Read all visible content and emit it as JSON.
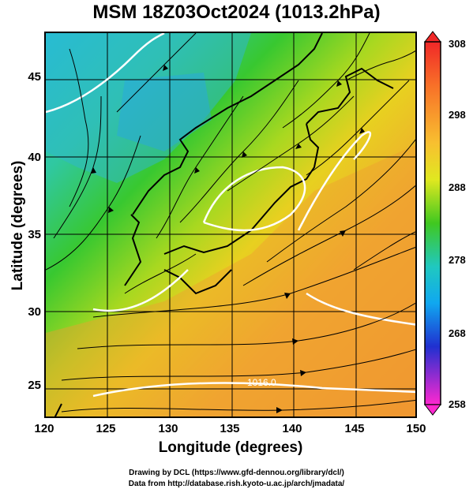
{
  "title": "MSM 18Z03Oct2024 (1013.2hPa)",
  "map": {
    "x_axis": {
      "label": "Longitude (degrees)",
      "range": [
        120,
        150
      ],
      "ticks": [
        "120",
        "125",
        "130",
        "135",
        "140",
        "145",
        "150"
      ]
    },
    "y_axis": {
      "label": "Latitude  (degrees)",
      "range": [
        22.5,
        47.5
      ],
      "ticks": [
        "25",
        "30",
        "35",
        "40",
        "45"
      ]
    },
    "field": "temperature (shaded) with streamlines",
    "contour_label": "1016.0",
    "colors": {
      "cold": "#1ec0e0",
      "mid": "#2fc41e",
      "warm": "#f0d020",
      "hot": "#f0902a"
    }
  },
  "colorbar": {
    "ticks": [
      "308",
      "298",
      "288",
      "278",
      "268",
      "258"
    ],
    "range": [
      258,
      308
    ],
    "colors": [
      "#ff28c8",
      "#3838e0",
      "#10b0f0",
      "#20d890",
      "#40c820",
      "#d8e820",
      "#f8b030",
      "#f05020"
    ]
  },
  "credits": {
    "line1": "Drawing by DCL (https://www.gfd-dennou.org/library/dcl/)",
    "line2": "Data from http://database.rish.kyoto-u.ac.jp/arch/jmadata/"
  }
}
